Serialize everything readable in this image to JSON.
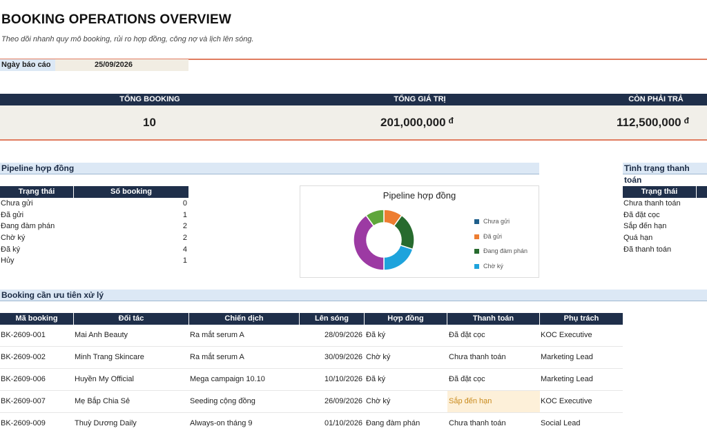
{
  "header": {
    "title": "BOOKING OPERATIONS OVERVIEW",
    "subtitle": "Theo dõi nhanh quy mô booking, rủi ro hợp đồng, công nợ và lịch lên sóng.",
    "report_date_label": "Ngày báo cáo",
    "report_date_value": "25/09/2026"
  },
  "kpis": [
    {
      "label": "TỔNG BOOKING",
      "value": "10",
      "currency": ""
    },
    {
      "label": "TỔNG GIÁ TRỊ",
      "value": "201,000,000",
      "currency": "đ"
    },
    {
      "label": "CÒN PHẢI TRẢ",
      "value": "112,500,000",
      "currency": "đ"
    }
  ],
  "pipeline": {
    "section_title": "Pipeline hợp đồng",
    "columns": [
      "Trạng thái",
      "Số booking"
    ],
    "rows": [
      {
        "status": "Chưa gửi",
        "count": "0"
      },
      {
        "status": "Đã gửi",
        "count": "1"
      },
      {
        "status": "Đang đàm phán",
        "count": "2"
      },
      {
        "status": "Chờ ký",
        "count": "2"
      },
      {
        "status": "Đã ký",
        "count": "4"
      },
      {
        "status": "Hủy",
        "count": "1"
      }
    ]
  },
  "chart_data": {
    "type": "pie",
    "title": "Pipeline hợp đồng",
    "categories": [
      "Chưa gửi",
      "Đã gửi",
      "Đang đàm phán",
      "Chờ ký",
      "Đã ký",
      "Hủy"
    ],
    "values": [
      0,
      1,
      2,
      2,
      4,
      1
    ],
    "colors": [
      "#1f5f8b",
      "#ed7d31",
      "#276b2e",
      "#1ea3dc",
      "#9c3aa3",
      "#5fa63b"
    ],
    "legend_entries": [
      "Chưa gửi",
      "Đã gửi",
      "Đang đàm phán",
      "Chờ ký"
    ],
    "legend": "right",
    "donut": true
  },
  "payment": {
    "section_title": "Tình trạng thanh toán",
    "columns": [
      "Trạng thái"
    ],
    "rows": [
      "Chưa thanh toán",
      "Đã đặt cọc",
      "Sắp đến hạn",
      "Quá hạn",
      "Đã thanh toán"
    ]
  },
  "priority": {
    "section_title": "Booking cần ưu tiên xử lý",
    "columns": [
      "Mã booking",
      "Đối tác",
      "Chiến dịch",
      "Lên sóng",
      "Hợp đồng",
      "Thanh toán",
      "Phụ trách"
    ],
    "rows": [
      {
        "id": "BK-2609-001",
        "partner": "Mai Anh Beauty",
        "campaign": "Ra mắt serum A",
        "air": "28/09/2026",
        "contract": "Đã ký",
        "payment": "Đã đặt cọc",
        "owner": "KOC Executive",
        "warn": false
      },
      {
        "id": "BK-2609-002",
        "partner": "Minh Trang Skincare",
        "campaign": "Ra mắt serum A",
        "air": "30/09/2026",
        "contract": "Chờ ký",
        "payment": "Chưa thanh toán",
        "owner": "Marketing Lead",
        "warn": false
      },
      {
        "id": "BK-2609-006",
        "partner": "Huyền My Official",
        "campaign": "Mega campaign 10.10",
        "air": "10/10/2026",
        "contract": "Đã ký",
        "payment": "Đã đặt cọc",
        "owner": "Marketing Lead",
        "warn": false
      },
      {
        "id": "BK-2609-007",
        "partner": "Mẹ Bắp Chia Sẻ",
        "campaign": "Seeding cộng đồng",
        "air": "26/09/2026",
        "contract": "Chờ ký",
        "payment": "Sắp đến hạn",
        "owner": "KOC Executive",
        "warn": true
      },
      {
        "id": "BK-2609-009",
        "partner": "Thuỳ Dương Daily",
        "campaign": "Always-on tháng 9",
        "air": "01/10/2026",
        "contract": "Đang đàm phán",
        "payment": "Chưa thanh toán",
        "owner": "Social Lead",
        "warn": false
      }
    ]
  }
}
